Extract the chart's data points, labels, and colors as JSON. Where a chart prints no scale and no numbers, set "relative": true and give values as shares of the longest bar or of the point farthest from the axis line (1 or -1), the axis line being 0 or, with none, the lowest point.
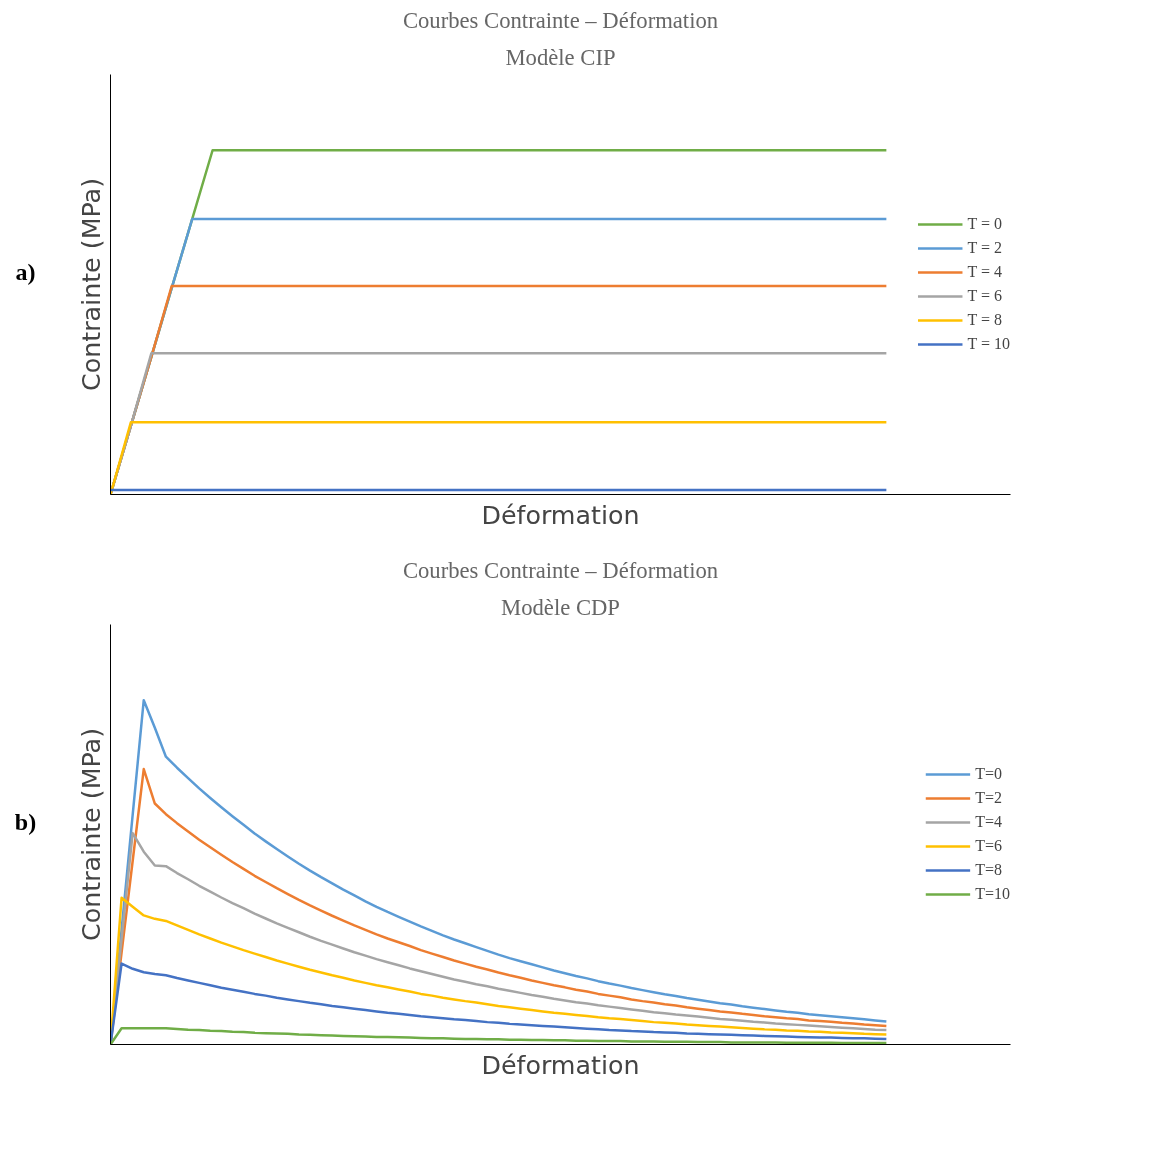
{
  "chart_data": [
    {
      "type": "line",
      "title": "Courbes Contrainte – Déformation",
      "subtitle": "Modèle CIP",
      "xlabel": "Déformation",
      "ylabel": "Contrainte (MPa)",
      "annotations": [
        "a)"
      ],
      "relative": true,
      "grid": false,
      "tick_labels": false,
      "legend": "right",
      "categories": [
        null,
        null,
        null,
        null,
        null,
        null,
        null,
        null,
        null,
        null,
        null,
        null,
        null,
        null,
        null,
        null,
        null,
        null,
        null,
        null,
        null,
        null,
        null,
        null,
        null,
        null,
        null,
        null,
        null,
        null,
        null,
        null,
        null,
        null,
        null,
        null,
        null,
        null,
        null
      ],
      "series": [
        {
          "name": "T = 0",
          "color": "#70ad47",
          "values": [
            0,
            0.2,
            0.4,
            0.6,
            0.8,
            1,
            1,
            1,
            1,
            1,
            1,
            1,
            1,
            1,
            1,
            1,
            1,
            1,
            1,
            1,
            1,
            1,
            1,
            1,
            1,
            1,
            1,
            1,
            1,
            1,
            1,
            1,
            1,
            1,
            1,
            1,
            1,
            1,
            1
          ]
        },
        {
          "name": "T = 2",
          "color": "#5b9bd5",
          "values": [
            0,
            0.2,
            0.4,
            0.6,
            0.8,
            0.8,
            0.8,
            0.8,
            0.8,
            0.8,
            0.8,
            0.8,
            0.8,
            0.8,
            0.8,
            0.8,
            0.8,
            0.8,
            0.8,
            0.8,
            0.8,
            0.8,
            0.8,
            0.8,
            0.8,
            0.8,
            0.8,
            0.8,
            0.8,
            0.8,
            0.8,
            0.8,
            0.8,
            0.8,
            0.8,
            0.8,
            0.8,
            0.8,
            0.8
          ]
        },
        {
          "name": "T = 4",
          "color": "#ed7d31",
          "values": [
            0,
            0.2,
            0.4,
            0.606,
            0.606,
            0.606,
            0.606,
            0.606,
            0.606,
            0.606,
            0.606,
            0.606,
            0.606,
            0.606,
            0.606,
            0.606,
            0.606,
            0.606,
            0.606,
            0.606,
            0.606,
            0.606,
            0.606,
            0.606,
            0.606,
            0.606,
            0.606,
            0.606,
            0.606,
            0.606,
            0.606,
            0.606,
            0.606,
            0.606,
            0.606,
            0.606,
            0.606,
            0.606,
            0.606
          ]
        },
        {
          "name": "T = 6",
          "color": "#a5a5a5",
          "values": [
            0,
            0.2,
            0.41,
            0.41,
            0.41,
            0.41,
            0.41,
            0.41,
            0.41,
            0.41,
            0.41,
            0.41,
            0.41,
            0.41,
            0.41,
            0.41,
            0.41,
            0.41,
            0.41,
            0.41,
            0.41,
            0.41,
            0.41,
            0.41,
            0.41,
            0.41,
            0.41,
            0.41,
            0.41,
            0.41,
            0.41,
            0.41,
            0.41,
            0.41,
            0.41,
            0.41,
            0.41,
            0.41,
            0.41
          ]
        },
        {
          "name": "T = 8",
          "color": "#ffc000",
          "values": [
            0,
            0.21,
            0.21,
            0.21,
            0.21,
            0.21,
            0.21,
            0.21,
            0.21,
            0.21,
            0.21,
            0.21,
            0.21,
            0.21,
            0.21,
            0.21,
            0.21,
            0.21,
            0.21,
            0.21,
            0.21,
            0.21,
            0.21,
            0.21,
            0.21,
            0.21,
            0.21,
            0.21,
            0.21,
            0.21,
            0.21,
            0.21,
            0.21,
            0.21,
            0.21,
            0.21,
            0.21,
            0.21,
            0.21
          ]
        },
        {
          "name": "T = 10",
          "color": "#4472c4",
          "values": [
            0.013,
            0.013,
            0.013,
            0.013,
            0.013,
            0.013,
            0.013,
            0.013,
            0.013,
            0.013,
            0.013,
            0.013,
            0.013,
            0.013,
            0.013,
            0.013,
            0.013,
            0.013,
            0.013,
            0.013,
            0.013,
            0.013,
            0.013,
            0.013,
            0.013,
            0.013,
            0.013,
            0.013,
            0.013,
            0.013,
            0.013,
            0.013,
            0.013,
            0.013,
            0.013,
            0.013,
            0.013,
            0.013,
            0.013
          ]
        }
      ]
    },
    {
      "type": "line",
      "title": "Courbes Contrainte – Déformation",
      "subtitle": "Modèle CDP",
      "xlabel": "Déformation",
      "ylabel": "Contrainte (MPa)",
      "annotations": [
        "b)"
      ],
      "relative": true,
      "grid": false,
      "tick_labels": false,
      "legend": "right",
      "categories": [
        null,
        null,
        null,
        null,
        null,
        null,
        null,
        null,
        null,
        null,
        null,
        null,
        null,
        null,
        null,
        null,
        null,
        null,
        null,
        null,
        null,
        null,
        null,
        null,
        null,
        null,
        null,
        null,
        null,
        null,
        null,
        null,
        null,
        null,
        null,
        null,
        null,
        null,
        null,
        null,
        null,
        null,
        null,
        null,
        null,
        null,
        null,
        null,
        null,
        null,
        null,
        null,
        null,
        null,
        null,
        null,
        null,
        null,
        null,
        null,
        null,
        null,
        null,
        null,
        null,
        null,
        null,
        null,
        null,
        null,
        null
      ],
      "series": [
        {
          "name": "T=0",
          "color": "#5b9bd5",
          "values": [
            0,
            0.333,
            0.667,
            1.0,
            0.92,
            0.836,
            0.804,
            0.774,
            0.744,
            0.716,
            0.689,
            0.663,
            0.638,
            0.613,
            0.59,
            0.568,
            0.546,
            0.525,
            0.505,
            0.486,
            0.468,
            0.45,
            0.433,
            0.416,
            0.4,
            0.385,
            0.371,
            0.357,
            0.343,
            0.33,
            0.317,
            0.305,
            0.294,
            0.283,
            0.272,
            0.261,
            0.251,
            0.242,
            0.233,
            0.224,
            0.215,
            0.207,
            0.199,
            0.192,
            0.184,
            0.177,
            0.171,
            0.164,
            0.158,
            0.152,
            0.146,
            0.141,
            0.135,
            0.13,
            0.125,
            0.12,
            0.116,
            0.111,
            0.107,
            0.103,
            0.099,
            0.095,
            0.092,
            0.088,
            0.085,
            0.082,
            0.079,
            0.076,
            0.073,
            0.07,
            0.067
          ]
        },
        {
          "name": "T=2",
          "color": "#ed7d31",
          "values": [
            0,
            0.267,
            0.533,
            0.8,
            0.7,
            0.669,
            0.643,
            0.619,
            0.595,
            0.573,
            0.551,
            0.53,
            0.51,
            0.49,
            0.472,
            0.454,
            0.437,
            0.42,
            0.404,
            0.389,
            0.374,
            0.36,
            0.346,
            0.333,
            0.32,
            0.308,
            0.297,
            0.286,
            0.274,
            0.264,
            0.254,
            0.244,
            0.235,
            0.226,
            0.218,
            0.209,
            0.201,
            0.194,
            0.186,
            0.179,
            0.172,
            0.166,
            0.159,
            0.154,
            0.147,
            0.142,
            0.137,
            0.131,
            0.126,
            0.122,
            0.117,
            0.113,
            0.108,
            0.104,
            0.1,
            0.096,
            0.093,
            0.089,
            0.086,
            0.082,
            0.079,
            0.076,
            0.074,
            0.07,
            0.068,
            0.066,
            0.063,
            0.061,
            0.058,
            0.056,
            0.054
          ]
        },
        {
          "name": "T=4",
          "color": "#a5a5a5",
          "values": [
            0,
            0.307,
            0.614,
            0.56,
            0.52,
            0.518,
            0.498,
            0.48,
            0.461,
            0.444,
            0.427,
            0.411,
            0.396,
            0.38,
            0.366,
            0.352,
            0.339,
            0.326,
            0.313,
            0.301,
            0.29,
            0.279,
            0.268,
            0.258,
            0.248,
            0.239,
            0.23,
            0.221,
            0.213,
            0.205,
            0.197,
            0.189,
            0.182,
            0.175,
            0.169,
            0.162,
            0.156,
            0.15,
            0.144,
            0.139,
            0.133,
            0.128,
            0.123,
            0.119,
            0.114,
            0.11,
            0.106,
            0.102,
            0.098,
            0.094,
            0.091,
            0.087,
            0.084,
            0.081,
            0.078,
            0.074,
            0.072,
            0.069,
            0.066,
            0.064,
            0.061,
            0.059,
            0.057,
            0.055,
            0.053,
            0.051,
            0.049,
            0.047,
            0.045,
            0.043,
            0.042
          ]
        },
        {
          "name": "T=6",
          "color": "#ffc000",
          "values": [
            0,
            0.426,
            0.4,
            0.375,
            0.365,
            0.359,
            0.346,
            0.333,
            0.32,
            0.308,
            0.296,
            0.285,
            0.274,
            0.264,
            0.254,
            0.244,
            0.235,
            0.226,
            0.217,
            0.209,
            0.201,
            0.194,
            0.186,
            0.179,
            0.172,
            0.166,
            0.16,
            0.154,
            0.147,
            0.142,
            0.136,
            0.131,
            0.126,
            0.122,
            0.117,
            0.112,
            0.108,
            0.104,
            0.1,
            0.096,
            0.092,
            0.089,
            0.086,
            0.083,
            0.079,
            0.076,
            0.074,
            0.071,
            0.068,
            0.065,
            0.063,
            0.061,
            0.058,
            0.056,
            0.054,
            0.052,
            0.05,
            0.048,
            0.046,
            0.044,
            0.043,
            0.041,
            0.04,
            0.038,
            0.037,
            0.035,
            0.034,
            0.033,
            0.031,
            0.03,
            0.029
          ]
        },
        {
          "name": "T=8",
          "color": "#4472c4",
          "values": [
            0,
            0.235,
            0.22,
            0.21,
            0.205,
            0.201,
            0.193,
            0.186,
            0.179,
            0.172,
            0.165,
            0.159,
            0.153,
            0.147,
            0.142,
            0.136,
            0.131,
            0.126,
            0.121,
            0.117,
            0.112,
            0.108,
            0.104,
            0.1,
            0.096,
            0.092,
            0.089,
            0.086,
            0.082,
            0.079,
            0.076,
            0.073,
            0.071,
            0.068,
            0.065,
            0.063,
            0.06,
            0.058,
            0.056,
            0.054,
            0.052,
            0.05,
            0.048,
            0.046,
            0.044,
            0.042,
            0.041,
            0.039,
            0.038,
            0.036,
            0.035,
            0.034,
            0.032,
            0.031,
            0.03,
            0.029,
            0.028,
            0.027,
            0.026,
            0.025,
            0.024,
            0.023,
            0.022,
            0.021,
            0.02,
            0.02,
            0.019,
            0.018,
            0.018,
            0.017,
            0.016
          ]
        },
        {
          "name": "T=10",
          "color": "#70ad47",
          "values": [
            0,
            0.047,
            0.047,
            0.047,
            0.047,
            0.047,
            0.045,
            0.043,
            0.042,
            0.04,
            0.039,
            0.037,
            0.036,
            0.034,
            0.033,
            0.032,
            0.031,
            0.029,
            0.028,
            0.027,
            0.026,
            0.025,
            0.024,
            0.023,
            0.022,
            0.022,
            0.021,
            0.02,
            0.019,
            0.018,
            0.018,
            0.017,
            0.016,
            0.016,
            0.015,
            0.015,
            0.014,
            0.014,
            0.013,
            0.013,
            0.012,
            0.012,
            0.011,
            0.011,
            0.01,
            0.01,
            0.01,
            0.009,
            0.009,
            0.009,
            0.008,
            0.008,
            0.008,
            0.007,
            0.007,
            0.007,
            0.006,
            0.006,
            0.006,
            0.006,
            0.006,
            0.005,
            0.005,
            0.005,
            0.005,
            0.005,
            0.004,
            0.004,
            0.004,
            0.004,
            0.004
          ]
        }
      ]
    }
  ]
}
